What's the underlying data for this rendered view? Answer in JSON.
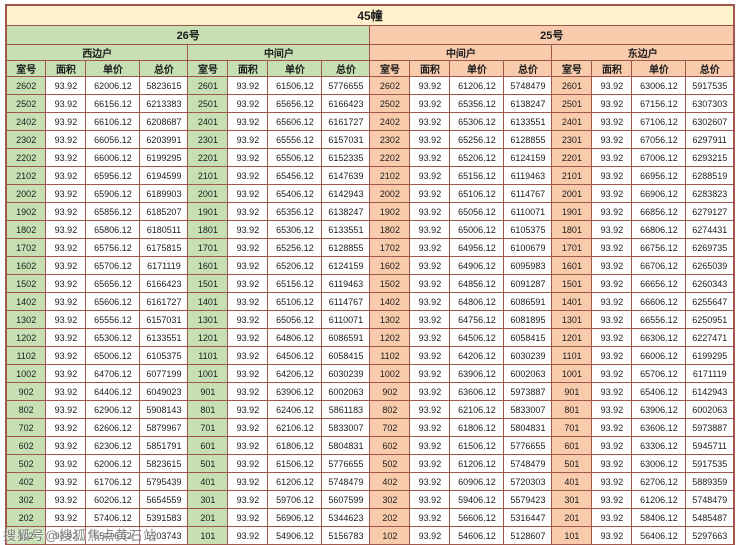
{
  "page": {
    "title": "45幢",
    "watermark": "搜狐号@搜狐焦点黄石站"
  },
  "colors": {
    "title_bg": "#fff2cc",
    "green_header_bg": "#c6e0b4",
    "orange_header_bg": "#f8cbad",
    "grid_border": "#a0564b"
  },
  "table": {
    "groups": [
      {
        "building": "26号",
        "sides": [
          "西边户",
          "中间户"
        ]
      },
      {
        "building": "25号",
        "sides": [
          "中间户",
          "东边户"
        ]
      }
    ],
    "columns": [
      "室号",
      "面积",
      "单价",
      "总价"
    ],
    "rows": [
      [
        "2602",
        "93.92",
        "62006.12",
        "5823615",
        "2601",
        "93.92",
        "61506.12",
        "5776655",
        "2602",
        "93.92",
        "61206.12",
        "5748479",
        "2601",
        "93.92",
        "63006.12",
        "5917535"
      ],
      [
        "2502",
        "93.92",
        "66156.12",
        "6213383",
        "2501",
        "93.92",
        "65656.12",
        "6166423",
        "2502",
        "93.92",
        "65356.12",
        "6138247",
        "2501",
        "93.92",
        "67156.12",
        "6307303"
      ],
      [
        "2402",
        "93.92",
        "66106.12",
        "6208687",
        "2401",
        "93.92",
        "65606.12",
        "6161727",
        "2402",
        "93.92",
        "65306.12",
        "6133551",
        "2401",
        "93.92",
        "67106.12",
        "6302607"
      ],
      [
        "2302",
        "93.92",
        "66056.12",
        "6203991",
        "2301",
        "93.92",
        "65556.12",
        "6157031",
        "2302",
        "93.92",
        "65256.12",
        "6128855",
        "2301",
        "93.92",
        "67056.12",
        "6297911"
      ],
      [
        "2202",
        "93.92",
        "66006.12",
        "6199295",
        "2201",
        "93.92",
        "65506.12",
        "6152335",
        "2202",
        "93.92",
        "65206.12",
        "6124159",
        "2201",
        "93.92",
        "67006.12",
        "6293215"
      ],
      [
        "2102",
        "93.92",
        "65956.12",
        "6194599",
        "2101",
        "93.92",
        "65456.12",
        "6147639",
        "2102",
        "93.92",
        "65156.12",
        "6119463",
        "2101",
        "93.92",
        "66956.12",
        "6288519"
      ],
      [
        "2002",
        "93.92",
        "65906.12",
        "6189903",
        "2001",
        "93.92",
        "65406.12",
        "6142943",
        "2002",
        "93.92",
        "65106.12",
        "6114767",
        "2001",
        "93.92",
        "66906.12",
        "6283823"
      ],
      [
        "1902",
        "93.92",
        "65856.12",
        "6185207",
        "1901",
        "93.92",
        "65356.12",
        "6138247",
        "1902",
        "93.92",
        "65056.12",
        "6110071",
        "1901",
        "93.92",
        "66856.12",
        "6279127"
      ],
      [
        "1802",
        "93.92",
        "65806.12",
        "6180511",
        "1801",
        "93.92",
        "65306.12",
        "6133551",
        "1802",
        "93.92",
        "65006.12",
        "6105375",
        "1801",
        "93.92",
        "66806.12",
        "6274431"
      ],
      [
        "1702",
        "93.92",
        "65756.12",
        "6175815",
        "1701",
        "93.92",
        "65256.12",
        "6128855",
        "1702",
        "93.92",
        "64956.12",
        "6100679",
        "1701",
        "93.92",
        "66756.12",
        "6269735"
      ],
      [
        "1602",
        "93.92",
        "65706.12",
        "6171119",
        "1601",
        "93.92",
        "65206.12",
        "6124159",
        "1602",
        "93.92",
        "64906.12",
        "6095983",
        "1601",
        "93.92",
        "66706.12",
        "6265039"
      ],
      [
        "1502",
        "93.92",
        "65656.12",
        "6166423",
        "1501",
        "93.92",
        "65156.12",
        "6119463",
        "1502",
        "93.92",
        "64856.12",
        "6091287",
        "1501",
        "93.92",
        "66656.12",
        "6260343"
      ],
      [
        "1402",
        "93.92",
        "65606.12",
        "6161727",
        "1401",
        "93.92",
        "65106.12",
        "6114767",
        "1402",
        "93.92",
        "64806.12",
        "6086591",
        "1401",
        "93.92",
        "66606.12",
        "6255647"
      ],
      [
        "1302",
        "93.92",
        "65556.12",
        "6157031",
        "1301",
        "93.92",
        "65056.12",
        "6110071",
        "1302",
        "93.92",
        "64756.12",
        "6081895",
        "1301",
        "93.92",
        "66556.12",
        "6250951"
      ],
      [
        "1202",
        "93.92",
        "65306.12",
        "6133551",
        "1201",
        "93.92",
        "64806.12",
        "6086591",
        "1202",
        "93.92",
        "64506.12",
        "6058415",
        "1201",
        "93.92",
        "66306.12",
        "6227471"
      ],
      [
        "1102",
        "93.92",
        "65006.12",
        "6105375",
        "1101",
        "93.92",
        "64506.12",
        "6058415",
        "1102",
        "93.92",
        "64206.12",
        "6030239",
        "1101",
        "93.92",
        "66006.12",
        "6199295"
      ],
      [
        "1002",
        "93.92",
        "64706.12",
        "6077199",
        "1001",
        "93.92",
        "64206.12",
        "6030239",
        "1002",
        "93.92",
        "63906.12",
        "6002063",
        "1001",
        "93.92",
        "65706.12",
        "6171119"
      ],
      [
        "902",
        "93.92",
        "64406.12",
        "6049023",
        "901",
        "93.92",
        "63906.12",
        "6002063",
        "902",
        "93.92",
        "63606.12",
        "5973887",
        "901",
        "93.92",
        "65406.12",
        "6142943"
      ],
      [
        "802",
        "93.92",
        "62906.12",
        "5908143",
        "801",
        "93.92",
        "62406.12",
        "5861183",
        "802",
        "93.92",
        "62106.12",
        "5833007",
        "801",
        "93.92",
        "63906.12",
        "6002063"
      ],
      [
        "702",
        "93.92",
        "62606.12",
        "5879967",
        "701",
        "93.92",
        "62106.12",
        "5833007",
        "702",
        "93.92",
        "61806.12",
        "5804831",
        "701",
        "93.92",
        "63606.12",
        "5973887"
      ],
      [
        "602",
        "93.92",
        "62306.12",
        "5851791",
        "601",
        "93.92",
        "61806.12",
        "5804831",
        "602",
        "93.92",
        "61506.12",
        "5776655",
        "601",
        "93.92",
        "63306.12",
        "5945711"
      ],
      [
        "502",
        "93.92",
        "62006.12",
        "5823615",
        "501",
        "93.92",
        "61506.12",
        "5776655",
        "502",
        "93.92",
        "61206.12",
        "5748479",
        "501",
        "93.92",
        "63006.12",
        "5917535"
      ],
      [
        "402",
        "93.92",
        "61706.12",
        "5795439",
        "401",
        "93.92",
        "61206.12",
        "5748479",
        "402",
        "93.92",
        "60906.12",
        "5720303",
        "401",
        "93.92",
        "62706.12",
        "5889359"
      ],
      [
        "302",
        "93.92",
        "60206.12",
        "5654559",
        "301",
        "93.92",
        "59706.12",
        "5607599",
        "302",
        "93.92",
        "59406.12",
        "5579423",
        "301",
        "93.92",
        "61206.12",
        "5748479"
      ],
      [
        "202",
        "93.92",
        "57406.12",
        "5391583",
        "201",
        "93.92",
        "56906.12",
        "5344623",
        "202",
        "93.92",
        "56606.12",
        "5316447",
        "201",
        "93.92",
        "58406.12",
        "5485487"
      ],
      [
        "102",
        "93.92",
        "55406.12",
        "5203743",
        "101",
        "93.92",
        "54906.12",
        "5156783",
        "102",
        "93.92",
        "54606.12",
        "5128607",
        "101",
        "93.92",
        "56406.12",
        "5297663"
      ]
    ]
  }
}
